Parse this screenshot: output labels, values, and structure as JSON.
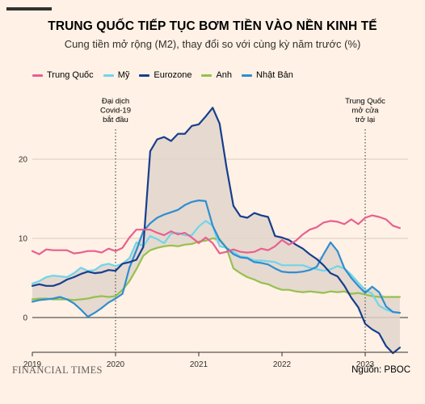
{
  "header": {
    "title": "TRUNG QUỐC TIẾP TỤC BƠM TIỀN VÀO NỀN KINH TẾ",
    "subtitle": "Cung tiền mở rộng (M2), thay đổi so với cùng kỳ năm trước (%)"
  },
  "footer": {
    "brand": "FINANCIAL TIMES",
    "source": "Nguồn: PBOC"
  },
  "colors": {
    "background": "#fff1e5",
    "china": "#e8608f",
    "us": "#6ed6ea",
    "eurozone": "#173e8c",
    "uk": "#95c14d",
    "japan": "#2f8ecf",
    "shade": "#e2d5cc"
  },
  "chart_data": {
    "type": "line",
    "title": "TRUNG QUỐC TIẾP TỤC BƠM TIỀN VÀO NỀN KINH TẾ",
    "subtitle": "Cung tiền mở rộng (M2), thay đổi so với cùng kỳ năm trước (%)",
    "xlabel": "",
    "ylabel": "",
    "xlim": [
      "2019-01",
      "2023-06"
    ],
    "ylim": [
      -4.5,
      27
    ],
    "x_ticks": [
      "2019",
      "2020",
      "2021",
      "2022",
      "2023"
    ],
    "y_ticks": [
      0,
      10,
      20
    ],
    "grid": true,
    "legend_position": "top-left",
    "shaded_band": "khoảng giữa giá trị cao nhất và thấp nhất của các nền kinh tế khác ngoài Trung Quốc",
    "annotations": [
      {
        "x": "2020-01",
        "label": [
          "Đại dịch",
          "Covid-19",
          "bắt đầu"
        ]
      },
      {
        "x": "2023-01",
        "label": [
          "Trung Quốc",
          "mở cửa",
          "trở lại"
        ]
      }
    ],
    "series": [
      {
        "name": "Trung Quốc",
        "points": [
          [
            "2019-01",
            8.4
          ],
          [
            "2019-02",
            8.0
          ],
          [
            "2019-03",
            8.6
          ],
          [
            "2019-04",
            8.5
          ],
          [
            "2019-05",
            8.5
          ],
          [
            "2019-06",
            8.5
          ],
          [
            "2019-07",
            8.1
          ],
          [
            "2019-08",
            8.2
          ],
          [
            "2019-09",
            8.4
          ],
          [
            "2019-10",
            8.4
          ],
          [
            "2019-11",
            8.2
          ],
          [
            "2019-12",
            8.7
          ],
          [
            "2020-01",
            8.4
          ],
          [
            "2020-02",
            8.8
          ],
          [
            "2020-03",
            10.1
          ],
          [
            "2020-04",
            11.1
          ],
          [
            "2020-05",
            11.1
          ],
          [
            "2020-06",
            11.1
          ],
          [
            "2020-07",
            10.7
          ],
          [
            "2020-08",
            10.4
          ],
          [
            "2020-09",
            10.9
          ],
          [
            "2020-10",
            10.5
          ],
          [
            "2020-11",
            10.7
          ],
          [
            "2020-12",
            10.1
          ],
          [
            "2021-01",
            9.4
          ],
          [
            "2021-02",
            10.1
          ],
          [
            "2021-03",
            9.4
          ],
          [
            "2021-04",
            8.1
          ],
          [
            "2021-05",
            8.3
          ],
          [
            "2021-06",
            8.6
          ],
          [
            "2021-07",
            8.3
          ],
          [
            "2021-08",
            8.2
          ],
          [
            "2021-09",
            8.3
          ],
          [
            "2021-10",
            8.7
          ],
          [
            "2021-11",
            8.5
          ],
          [
            "2021-12",
            9.0
          ],
          [
            "2022-01",
            9.8
          ],
          [
            "2022-02",
            9.2
          ],
          [
            "2022-03",
            9.7
          ],
          [
            "2022-04",
            10.5
          ],
          [
            "2022-05",
            11.1
          ],
          [
            "2022-06",
            11.4
          ],
          [
            "2022-07",
            12.0
          ],
          [
            "2022-08",
            12.2
          ],
          [
            "2022-09",
            12.1
          ],
          [
            "2022-10",
            11.8
          ],
          [
            "2022-11",
            12.4
          ],
          [
            "2022-12",
            11.8
          ],
          [
            "2023-01",
            12.6
          ],
          [
            "2023-02",
            12.9
          ],
          [
            "2023-03",
            12.7
          ],
          [
            "2023-04",
            12.4
          ],
          [
            "2023-05",
            11.6
          ],
          [
            "2023-06",
            11.3
          ]
        ]
      },
      {
        "name": "Mỹ",
        "points": [
          [
            "2019-01",
            4.3
          ],
          [
            "2019-02",
            4.6
          ],
          [
            "2019-03",
            5.1
          ],
          [
            "2019-04",
            5.3
          ],
          [
            "2019-05",
            5.2
          ],
          [
            "2019-06",
            5.1
          ],
          [
            "2019-07",
            5.6
          ],
          [
            "2019-08",
            6.3
          ],
          [
            "2019-09",
            5.9
          ],
          [
            "2019-10",
            6.0
          ],
          [
            "2019-11",
            6.6
          ],
          [
            "2019-12",
            6.8
          ],
          [
            "2020-01",
            6.5
          ],
          [
            "2020-02",
            6.8
          ],
          [
            "2020-03",
            7.5
          ],
          [
            "2020-04",
            9.5
          ],
          [
            "2020-05",
            9.0
          ],
          [
            "2020-06",
            10.3
          ],
          [
            "2020-07",
            9.9
          ],
          [
            "2020-08",
            9.4
          ],
          [
            "2020-09",
            10.6
          ],
          [
            "2020-10",
            10.7
          ],
          [
            "2020-11",
            10.4
          ],
          [
            "2020-12",
            10.4
          ],
          [
            "2021-01",
            11.5
          ],
          [
            "2021-02",
            12.2
          ],
          [
            "2021-03",
            11.6
          ],
          [
            "2021-04",
            9.0
          ],
          [
            "2021-05",
            8.8
          ],
          [
            "2021-06",
            8.3
          ],
          [
            "2021-07",
            7.7
          ],
          [
            "2021-08",
            7.6
          ],
          [
            "2021-09",
            7.2
          ],
          [
            "2021-10",
            7.2
          ],
          [
            "2021-11",
            7.1
          ],
          [
            "2021-12",
            7.0
          ],
          [
            "2022-01",
            6.6
          ],
          [
            "2022-02",
            6.6
          ],
          [
            "2022-03",
            6.6
          ],
          [
            "2022-04",
            6.6
          ],
          [
            "2022-05",
            6.3
          ],
          [
            "2022-06",
            6.1
          ],
          [
            "2022-07",
            5.9
          ],
          [
            "2022-08",
            6.1
          ],
          [
            "2022-09",
            6.5
          ],
          [
            "2022-10",
            6.2
          ],
          [
            "2022-11",
            5.4
          ],
          [
            "2022-12",
            4.4
          ],
          [
            "2023-01",
            3.5
          ],
          [
            "2023-02",
            3.0
          ],
          [
            "2023-03",
            1.5
          ],
          [
            "2023-04",
            1.0
          ],
          [
            "2023-05",
            0.7
          ],
          [
            "2023-06",
            0.6
          ]
        ]
      },
      {
        "name": "Eurozone",
        "points": [
          [
            "2019-01",
            4.0
          ],
          [
            "2019-02",
            4.2
          ],
          [
            "2019-03",
            4.0
          ],
          [
            "2019-04",
            4.0
          ],
          [
            "2019-05",
            4.3
          ],
          [
            "2019-06",
            4.8
          ],
          [
            "2019-07",
            5.1
          ],
          [
            "2019-08",
            5.5
          ],
          [
            "2019-09",
            5.8
          ],
          [
            "2019-10",
            5.6
          ],
          [
            "2019-11",
            5.7
          ],
          [
            "2019-12",
            6.0
          ],
          [
            "2020-01",
            5.9
          ],
          [
            "2020-02",
            6.8
          ],
          [
            "2020-03",
            7.0
          ],
          [
            "2020-04",
            7.3
          ],
          [
            "2020-05",
            8.9
          ],
          [
            "2020-06",
            21.0
          ],
          [
            "2020-07",
            22.5
          ],
          [
            "2020-08",
            22.8
          ],
          [
            "2020-09",
            22.3
          ],
          [
            "2020-10",
            23.2
          ],
          [
            "2020-11",
            23.2
          ],
          [
            "2020-12",
            24.2
          ],
          [
            "2021-01",
            24.4
          ],
          [
            "2021-02",
            25.4
          ],
          [
            "2021-03",
            26.5
          ],
          [
            "2021-04",
            24.5
          ],
          [
            "2021-05",
            19.0
          ],
          [
            "2021-06",
            14.1
          ],
          [
            "2021-07",
            12.8
          ],
          [
            "2021-08",
            12.6
          ],
          [
            "2021-09",
            13.2
          ],
          [
            "2021-10",
            12.9
          ],
          [
            "2021-11",
            12.7
          ],
          [
            "2021-12",
            10.3
          ],
          [
            "2022-01",
            10.1
          ],
          [
            "2022-02",
            9.8
          ],
          [
            "2022-03",
            9.2
          ],
          [
            "2022-04",
            8.7
          ],
          [
            "2022-05",
            8.0
          ],
          [
            "2022-06",
            7.4
          ],
          [
            "2022-07",
            6.6
          ],
          [
            "2022-08",
            5.6
          ],
          [
            "2022-09",
            5.2
          ],
          [
            "2022-10",
            4.0
          ],
          [
            "2022-11",
            2.5
          ],
          [
            "2022-12",
            1.3
          ],
          [
            "2023-01",
            -0.8
          ],
          [
            "2023-02",
            -1.5
          ],
          [
            "2023-03",
            -2.0
          ],
          [
            "2023-04",
            -3.6
          ],
          [
            "2023-05",
            -4.5
          ],
          [
            "2023-06",
            -3.8
          ]
        ]
      },
      {
        "name": "Anh",
        "points": [
          [
            "2019-01",
            2.3
          ],
          [
            "2019-02",
            2.4
          ],
          [
            "2019-03",
            2.4
          ],
          [
            "2019-04",
            2.3
          ],
          [
            "2019-05",
            2.3
          ],
          [
            "2019-06",
            2.3
          ],
          [
            "2019-07",
            2.2
          ],
          [
            "2019-08",
            2.3
          ],
          [
            "2019-09",
            2.4
          ],
          [
            "2019-10",
            2.6
          ],
          [
            "2019-11",
            2.7
          ],
          [
            "2019-12",
            2.6
          ],
          [
            "2020-01",
            2.7
          ],
          [
            "2020-02",
            3.5
          ],
          [
            "2020-03",
            4.6
          ],
          [
            "2020-04",
            6.1
          ],
          [
            "2020-05",
            7.8
          ],
          [
            "2020-06",
            8.5
          ],
          [
            "2020-07",
            8.8
          ],
          [
            "2020-08",
            9.0
          ],
          [
            "2020-09",
            9.1
          ],
          [
            "2020-10",
            9.0
          ],
          [
            "2020-11",
            9.2
          ],
          [
            "2020-12",
            9.3
          ],
          [
            "2021-01",
            9.6
          ],
          [
            "2021-02",
            9.7
          ],
          [
            "2021-03",
            10.0
          ],
          [
            "2021-04",
            9.9
          ],
          [
            "2021-05",
            8.8
          ],
          [
            "2021-06",
            6.2
          ],
          [
            "2021-07",
            5.6
          ],
          [
            "2021-08",
            5.1
          ],
          [
            "2021-09",
            4.8
          ],
          [
            "2021-10",
            4.4
          ],
          [
            "2021-11",
            4.2
          ],
          [
            "2021-12",
            3.8
          ],
          [
            "2022-01",
            3.5
          ],
          [
            "2022-02",
            3.5
          ],
          [
            "2022-03",
            3.3
          ],
          [
            "2022-04",
            3.2
          ],
          [
            "2022-05",
            3.3
          ],
          [
            "2022-06",
            3.2
          ],
          [
            "2022-07",
            3.1
          ],
          [
            "2022-08",
            3.3
          ],
          [
            "2022-09",
            3.2
          ],
          [
            "2022-10",
            3.3
          ],
          [
            "2022-11",
            3.0
          ],
          [
            "2022-12",
            3.1
          ],
          [
            "2023-01",
            2.9
          ],
          [
            "2023-02",
            2.7
          ],
          [
            "2023-03",
            2.6
          ],
          [
            "2023-04",
            2.6
          ],
          [
            "2023-05",
            2.6
          ],
          [
            "2023-06",
            2.6
          ]
        ]
      },
      {
        "name": "Nhật Bản",
        "points": [
          [
            "2019-01",
            2.0
          ],
          [
            "2019-02",
            2.2
          ],
          [
            "2019-03",
            2.3
          ],
          [
            "2019-04",
            2.4
          ],
          [
            "2019-05",
            2.6
          ],
          [
            "2019-06",
            2.3
          ],
          [
            "2019-07",
            1.8
          ],
          [
            "2019-08",
            1.0
          ],
          [
            "2019-09",
            0.1
          ],
          [
            "2019-10",
            0.6
          ],
          [
            "2019-11",
            1.2
          ],
          [
            "2019-12",
            1.9
          ],
          [
            "2020-01",
            2.4
          ],
          [
            "2020-02",
            3.0
          ],
          [
            "2020-03",
            6.3
          ],
          [
            "2020-04",
            8.5
          ],
          [
            "2020-05",
            10.9
          ],
          [
            "2020-06",
            11.9
          ],
          [
            "2020-07",
            12.6
          ],
          [
            "2020-08",
            13.0
          ],
          [
            "2020-09",
            13.3
          ],
          [
            "2020-10",
            13.6
          ],
          [
            "2020-11",
            14.2
          ],
          [
            "2020-12",
            14.6
          ],
          [
            "2021-01",
            14.8
          ],
          [
            "2021-02",
            14.7
          ],
          [
            "2021-03",
            11.6
          ],
          [
            "2021-04",
            9.8
          ],
          [
            "2021-05",
            8.8
          ],
          [
            "2021-06",
            8.0
          ],
          [
            "2021-07",
            7.6
          ],
          [
            "2021-08",
            7.5
          ],
          [
            "2021-09",
            7.0
          ],
          [
            "2021-10",
            6.9
          ],
          [
            "2021-11",
            6.7
          ],
          [
            "2021-12",
            6.2
          ],
          [
            "2022-01",
            5.8
          ],
          [
            "2022-02",
            5.7
          ],
          [
            "2022-03",
            5.7
          ],
          [
            "2022-04",
            5.8
          ],
          [
            "2022-05",
            6.0
          ],
          [
            "2022-06",
            6.4
          ],
          [
            "2022-07",
            8.0
          ],
          [
            "2022-08",
            9.5
          ],
          [
            "2022-09",
            8.4
          ],
          [
            "2022-10",
            6.2
          ],
          [
            "2022-11",
            5.0
          ],
          [
            "2022-12",
            4.0
          ],
          [
            "2023-01",
            3.1
          ],
          [
            "2023-02",
            3.9
          ],
          [
            "2023-03",
            3.2
          ],
          [
            "2023-04",
            1.4
          ],
          [
            "2023-05",
            0.7
          ],
          [
            "2023-06",
            0.6
          ]
        ]
      }
    ]
  }
}
